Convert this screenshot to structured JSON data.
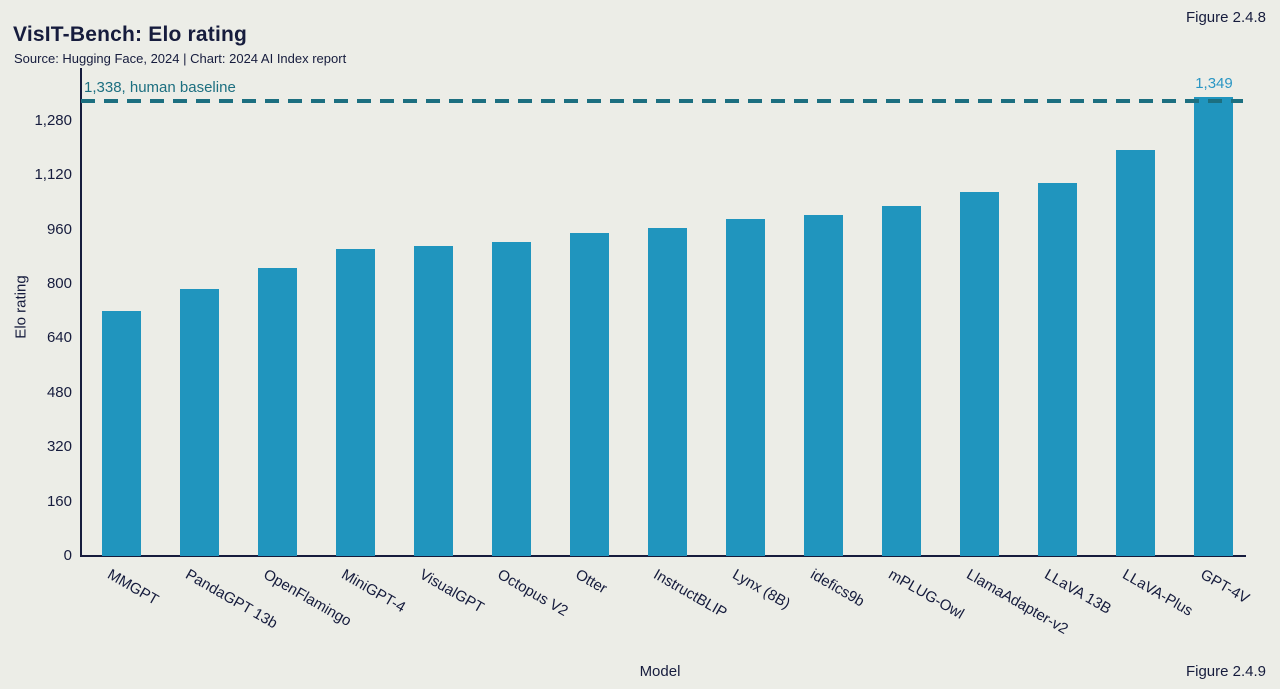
{
  "header": {
    "figure_label": "Figure 2.4.8",
    "title": "VisIT-Bench: Elo rating",
    "subtitle": "Source: Hugging Face, 2024 | Chart: 2024 AI Index report"
  },
  "footer": {
    "figure_label": "Figure 2.4.9"
  },
  "chart_data": {
    "type": "bar",
    "title": "VisIT-Bench: Elo rating",
    "xlabel": "Model",
    "ylabel": "Elo rating",
    "ylim": [
      0,
      1380
    ],
    "yticks": [
      0,
      160,
      320,
      480,
      640,
      800,
      960,
      1120,
      1280
    ],
    "grid": false,
    "legend": "none",
    "categories": [
      "MMGPT",
      "PandaGPT 13b",
      "OpenFlamingo",
      "MiniGPT-4",
      "VisualGPT",
      "Octopus V2",
      "Otter",
      "InstructBLIP",
      "Lynx (8B)",
      "idefics9b",
      "mPLUG-Owl",
      "LlamaAdapter-v2",
      "LLaVA 13B",
      "LLaVA-Plus",
      "GPT-4V"
    ],
    "values": [
      721,
      786,
      846,
      903,
      912,
      924,
      950,
      966,
      992,
      1003,
      1028,
      1072,
      1096,
      1193,
      1349
    ],
    "value_label": {
      "category": "GPT-4V",
      "text": "1,349"
    },
    "baseline": {
      "value": 1338,
      "label": "1,338, human baseline"
    },
    "colors": {
      "bar": "#2095BE",
      "baseline": "#1C6F80",
      "value_label": "#2A96C4",
      "axis_text": "#161C3D",
      "background": "#ECEDE7"
    }
  }
}
